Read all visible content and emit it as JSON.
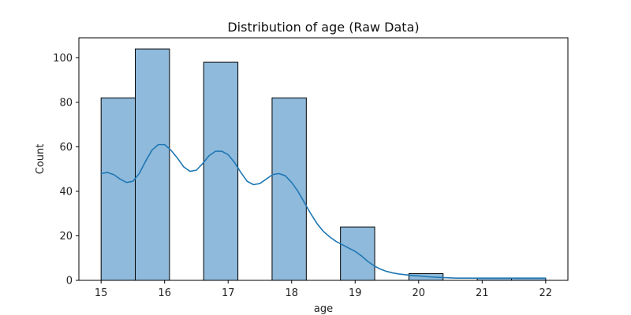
{
  "chart_data": {
    "type": "bar",
    "title": "Distribution of age (Raw Data)",
    "xlabel": "age",
    "ylabel": "Count",
    "xlim": [
      14.65,
      22.35
    ],
    "ylim": [
      0,
      109
    ],
    "x_ticks": [
      "15",
      "16",
      "17",
      "18",
      "19",
      "20",
      "21",
      "22"
    ],
    "y_ticks": [
      "0",
      "20",
      "40",
      "60",
      "80",
      "100"
    ],
    "bins": [
      {
        "x0": 15.0,
        "x1": 15.538,
        "value": 82
      },
      {
        "x0": 15.538,
        "x1": 16.077,
        "value": 104
      },
      {
        "x0": 16.077,
        "x1": 16.615,
        "value": 0
      },
      {
        "x0": 16.615,
        "x1": 17.154,
        "value": 98
      },
      {
        "x0": 17.154,
        "x1": 17.692,
        "value": 0
      },
      {
        "x0": 17.692,
        "x1": 18.231,
        "value": 82
      },
      {
        "x0": 18.231,
        "x1": 18.769,
        "value": 0
      },
      {
        "x0": 18.769,
        "x1": 19.308,
        "value": 24
      },
      {
        "x0": 19.308,
        "x1": 19.846,
        "value": 0
      },
      {
        "x0": 19.846,
        "x1": 20.385,
        "value": 3
      },
      {
        "x0": 20.385,
        "x1": 20.923,
        "value": 0
      },
      {
        "x0": 20.923,
        "x1": 21.462,
        "value": 1
      },
      {
        "x0": 21.462,
        "x1": 22.0,
        "value": 1
      }
    ],
    "kde": {
      "x": [
        15.0,
        15.1,
        15.2,
        15.3,
        15.4,
        15.5,
        15.6,
        15.7,
        15.8,
        15.9,
        16.0,
        16.1,
        16.2,
        16.3,
        16.4,
        16.5,
        16.6,
        16.7,
        16.8,
        16.9,
        17.0,
        17.1,
        17.2,
        17.3,
        17.4,
        17.5,
        17.6,
        17.7,
        17.8,
        17.9,
        18.0,
        18.1,
        18.2,
        18.3,
        18.4,
        18.5,
        18.6,
        18.7,
        18.8,
        18.9,
        19.0,
        19.1,
        19.2,
        19.3,
        19.4,
        19.5,
        19.6,
        19.7,
        19.8,
        19.9,
        20.0,
        20.2,
        20.4,
        20.6,
        20.8,
        21.0,
        21.2,
        21.4,
        21.6,
        21.8,
        22.0
      ],
      "y": [
        48,
        48.5,
        47.5,
        45.5,
        44,
        44.5,
        48,
        53.5,
        58.5,
        61,
        61,
        58.5,
        55,
        51,
        49,
        49.5,
        52.5,
        56,
        58,
        58,
        56.5,
        53,
        48.5,
        44.5,
        43,
        43.5,
        45.5,
        47.5,
        48,
        47,
        44,
        40,
        35,
        30,
        25.5,
        22,
        19.5,
        17.5,
        16,
        14.5,
        13,
        11,
        8.5,
        6.5,
        5,
        4,
        3.3,
        2.8,
        2.5,
        2.2,
        2,
        1.5,
        1.2,
        1.0,
        1.0,
        1.0,
        1.0,
        1.0,
        1.0,
        1.0,
        1.0
      ]
    },
    "colors": {
      "bar_fill": "#8fbadb",
      "bar_edge": "#000000",
      "kde_line": "#1f77b4"
    },
    "grid": false
  }
}
